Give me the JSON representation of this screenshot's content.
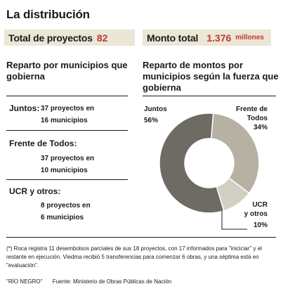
{
  "title": "La distribución",
  "summary": {
    "projects_label": "Total de proyectos",
    "projects_value": "82",
    "amount_label": "Monto total",
    "amount_value": "1.376",
    "amount_unit": "millones"
  },
  "left_section": {
    "heading": "Reparto por municipios que gobierna",
    "groups": [
      {
        "label": "Juntos:",
        "line1": "37 proyectos en",
        "line2": "16 municipios"
      },
      {
        "label": "Frente de Todos:",
        "line1": "37 proyectos en",
        "line2": "10 municipios"
      },
      {
        "label": "UCR y otros:",
        "line1": "8 proyectos en",
        "line2": "6 municipios"
      }
    ]
  },
  "right_section": {
    "heading": "Reparto de montos por municipios según la fuerza que gobierna"
  },
  "chart_data": {
    "type": "pie",
    "donut": true,
    "categories": [
      "Juntos",
      "Frente de Todos",
      "UCR y otros"
    ],
    "values": [
      56,
      34,
      10
    ],
    "value_labels": [
      "56%",
      "34%",
      "10%"
    ],
    "colors": [
      "#6e6a64",
      "#b7b1a3",
      "#d4cfc3"
    ]
  },
  "pie_labels": {
    "juntos_name": "Juntos",
    "juntos_pct": "56%",
    "frente_name_1": "Frente de",
    "frente_name_2": "Todos",
    "frente_pct": "34%",
    "ucr_name_1": "UCR",
    "ucr_name_2": "y otros",
    "ucr_pct": "10%"
  },
  "footnote": "(*) Roca registra 11 desembolsos parciales de sus 18 proyectos, con 17 informados para \"iniciciar\" y el restante en ejecución. Viedma recibió 5 transferencias para comenzar 6 obras, y una séptima está en \"evaluación\".",
  "source": {
    "outlet": "\"RÍO NEGRO\"",
    "text": "Fuente: Ministerio de Obras Públicas de Nación"
  }
}
